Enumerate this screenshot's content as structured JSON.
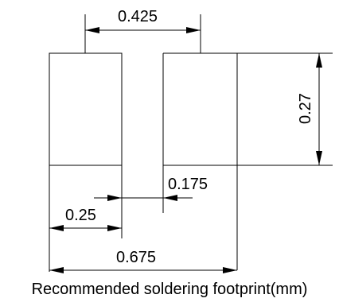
{
  "caption": "Recommended soldering footprint(mm)",
  "dimensions": {
    "pad_pitch": "0.425",
    "pad_height": "0.27",
    "pad_gap": "0.175",
    "pad_width": "0.25",
    "overall_width": "0.675"
  },
  "colors": {
    "line": "#000000",
    "background": "#ffffff"
  }
}
